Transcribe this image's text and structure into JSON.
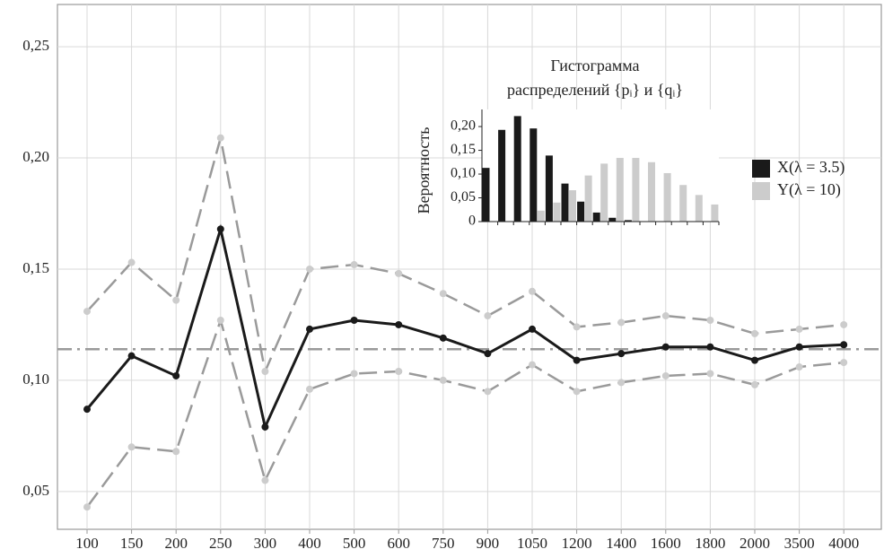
{
  "chart_data": [
    {
      "type": "line",
      "categories": [
        "100",
        "150",
        "200",
        "250",
        "300",
        "400",
        "500",
        "600",
        "750",
        "900",
        "1050",
        "1200",
        "1400",
        "1600",
        "1800",
        "2000",
        "3500",
        "4000"
      ],
      "series": [
        {
          "color": "#1a1a1a",
          "marker_color": "#1a1a1a",
          "dash": "solid",
          "values": [
            0.087,
            0.111,
            0.102,
            0.168,
            0.079,
            0.123,
            0.127,
            0.125,
            0.119,
            0.112,
            0.123,
            0.109,
            0.112,
            0.115,
            0.115,
            0.109,
            0.115,
            0.116
          ]
        },
        {
          "color": "#9a9a9a",
          "marker_color": "#cccccc",
          "dash": "dashed",
          "values": [
            0.131,
            0.153,
            0.136,
            0.209,
            0.104,
            0.15,
            0.152,
            0.148,
            0.139,
            0.129,
            0.14,
            0.124,
            0.126,
            0.129,
            0.127,
            0.121,
            0.123,
            0.125
          ]
        },
        {
          "color": "#9a9a9a",
          "marker_color": "#cccccc",
          "dash": "dashed",
          "values": [
            0.043,
            0.07,
            0.068,
            0.127,
            0.055,
            0.096,
            0.103,
            0.104,
            0.1,
            0.095,
            0.107,
            0.095,
            0.099,
            0.102,
            0.103,
            0.098,
            0.106,
            0.108
          ]
        }
      ],
      "hline": 0.114,
      "hline_color": "#9a9a9a",
      "ylim": [
        0.033,
        0.269
      ],
      "yticks": [
        {
          "value": 0.05,
          "label": "0,05"
        },
        {
          "value": 0.1,
          "label": "0,10"
        },
        {
          "value": 0.15,
          "label": "0,15"
        },
        {
          "value": 0.2,
          "label": "0,20"
        },
        {
          "value": 0.25,
          "label": "0,25"
        }
      ],
      "grid": true
    },
    {
      "type": "bar",
      "title_lines": [
        "Гистограмма",
        "распределений {pᵢ} и {qᵢ}"
      ],
      "y_label": "Вероятность",
      "categories": [
        null,
        null,
        null,
        null,
        null,
        null,
        null,
        null,
        null,
        null,
        null,
        null,
        null,
        null,
        null
      ],
      "series": [
        {
          "name": "X(λ = 3.5)",
          "color": "#1a1a1a",
          "values": [
            0.113,
            0.193,
            0.222,
            0.196,
            0.139,
            0.08,
            0.042,
            0.019,
            0.008,
            0.003,
            null,
            null,
            null,
            null,
            null
          ]
        },
        {
          "name": "Y(λ = 10)",
          "color": "#cccccc",
          "values": [
            null,
            null,
            null,
            0.023,
            0.04,
            0.066,
            0.097,
            0.122,
            0.134,
            0.134,
            0.125,
            0.102,
            0.077,
            0.056,
            0.036
          ]
        }
      ],
      "ylim": [
        0,
        0.236
      ],
      "yticks": [
        0,
        {
          "value": 0.05,
          "label": "0,05"
        },
        {
          "value": 0.1,
          "label": "0,10"
        },
        {
          "value": 0.15,
          "label": "0,15"
        },
        {
          "value": 0.2,
          "label": "0,20"
        }
      ]
    }
  ]
}
